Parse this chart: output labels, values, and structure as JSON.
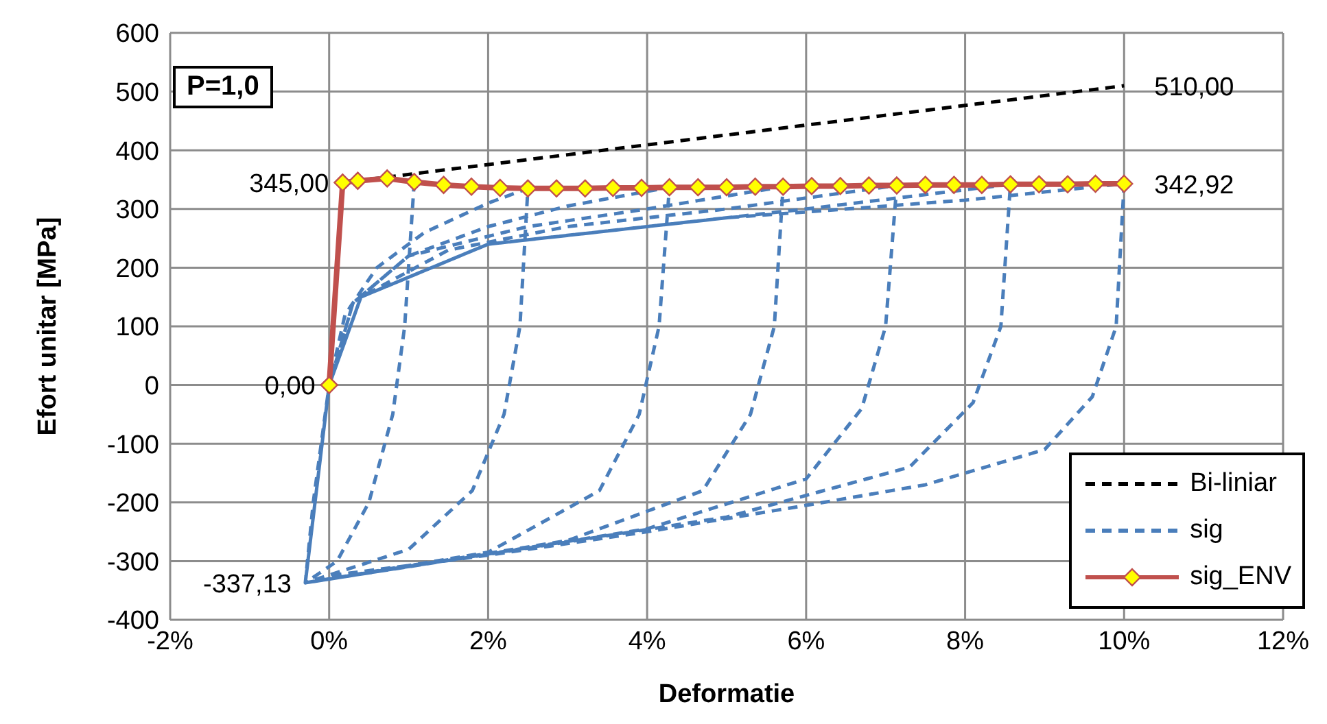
{
  "chart_data": {
    "type": "line",
    "xlabel": "Deformatie",
    "ylabel": "Efort unitar [MPa]",
    "xlim": [
      -2,
      12
    ],
    "xticks": [
      {
        "value": -2,
        "label": "-2%"
      },
      {
        "value": 0,
        "label": "0%"
      },
      {
        "value": 2,
        "label": "2%"
      },
      {
        "value": 4,
        "label": "4%"
      },
      {
        "value": 6,
        "label": "6%"
      },
      {
        "value": 8,
        "label": "8%"
      },
      {
        "value": 10,
        "label": "10%"
      },
      {
        "value": 12,
        "label": "12%"
      }
    ],
    "ylim": [
      -400,
      600
    ],
    "yticks": [
      -400,
      -300,
      -200,
      -100,
      0,
      100,
      200,
      300,
      400,
      500,
      600
    ],
    "grid": true,
    "legend": "bottom right",
    "annotations": [
      "P=1,0",
      {
        "text": "345,00",
        "x": 0.17,
        "y": 345
      },
      {
        "text": "342,92",
        "x": 10,
        "y": 342.92
      },
      {
        "text": "0,00",
        "x": 0,
        "y": 0
      },
      {
        "text": "-337,13",
        "x": -0.3,
        "y": -337.13
      },
      {
        "text": "510,00",
        "x": 10,
        "y": 510
      }
    ],
    "series": [
      {
        "name": "Bi-liniar",
        "color": "#000000",
        "line_style": "dashed",
        "marker": "none",
        "x": [
          0,
          0.17,
          10
        ],
        "values": [
          0,
          345,
          510
        ]
      },
      {
        "name": "sig",
        "color": "#4a7ebb",
        "line_style": "dashed",
        "marker": "none",
        "x": [
          0,
          0.17,
          0.36,
          0.73,
          1.07,
          0.95,
          0.8,
          0.5,
          0.1,
          -0.3,
          -0.2,
          0,
          0.2,
          0.6,
          1.2,
          2,
          2.5,
          2.4,
          2.2,
          1.8,
          1,
          -0.3,
          0,
          0.3,
          1,
          2,
          3,
          4.28,
          4.15,
          3.9,
          3.4,
          2,
          -0.3,
          0,
          0.3,
          1,
          2.5,
          4,
          5.71,
          5.6,
          5.3,
          4.7,
          3,
          -0.3,
          0,
          0.4,
          1.5,
          3,
          5,
          7.14,
          7,
          6.7,
          6,
          4,
          -0.3,
          0,
          0.4,
          2,
          4,
          6,
          8.57,
          8.45,
          8.1,
          7.3,
          5,
          -0.3,
          0,
          0.4,
          2,
          5,
          8,
          10,
          9.9,
          9.6,
          9,
          7.5,
          6,
          4,
          2,
          0
        ],
        "values": [
          0,
          345,
          null,
          null,
          346,
          100,
          -50,
          -200,
          -300,
          -337,
          -200,
          0,
          120,
          200,
          260,
          310,
          335,
          100,
          -50,
          -180,
          -280,
          -337,
          0,
          140,
          220,
          270,
          305,
          337,
          100,
          -50,
          -180,
          -285,
          -337,
          0,
          140,
          220,
          270,
          300,
          338,
          100,
          -50,
          -180,
          -265,
          -337,
          0,
          150,
          230,
          270,
          300,
          340,
          100,
          -40,
          -160,
          -245,
          -337,
          0,
          150,
          240,
          270,
          300,
          342,
          100,
          -30,
          -140,
          -225,
          -337,
          0,
          150,
          240,
          285,
          315,
          343,
          100,
          -20,
          -110,
          -170,
          -205,
          -250,
          -290,
          -325
        ]
      },
      {
        "name": "sig_ENV",
        "color": "#c0504d",
        "line_style": "solid",
        "marker": "diamond",
        "x": [
          0,
          0.17,
          0.36,
          0.73,
          1.07,
          1.44,
          1.79,
          2.15,
          2.5,
          2.86,
          3.22,
          3.57,
          3.93,
          4.28,
          4.64,
          5,
          5.36,
          5.71,
          6.07,
          6.43,
          6.79,
          7.14,
          7.5,
          7.86,
          8.21,
          8.57,
          8.93,
          9.29,
          9.64,
          10
        ],
        "values": [
          0,
          345,
          348,
          352,
          346,
          341,
          338,
          336,
          335,
          335,
          335,
          336,
          336,
          337,
          337,
          337,
          338,
          338,
          339,
          339,
          340,
          340,
          341,
          341,
          341,
          342,
          342,
          342,
          343,
          343
        ]
      }
    ]
  }
}
